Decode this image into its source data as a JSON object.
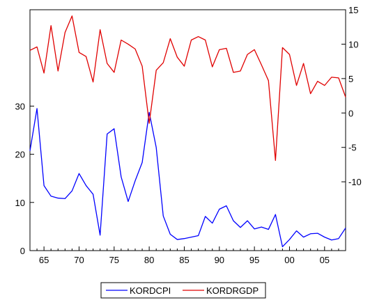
{
  "chart_data": {
    "type": "line",
    "x": [
      1963,
      1964,
      1965,
      1966,
      1967,
      1968,
      1969,
      1970,
      1971,
      1972,
      1973,
      1974,
      1975,
      1976,
      1977,
      1978,
      1979,
      1980,
      1981,
      1982,
      1983,
      1984,
      1985,
      1986,
      1987,
      1988,
      1989,
      1990,
      1991,
      1992,
      1993,
      1994,
      1995,
      1996,
      1997,
      1998,
      1999,
      2000,
      2001,
      2002,
      2003,
      2004,
      2005,
      2006,
      2007,
      2008
    ],
    "xlim": [
      1963,
      2008
    ],
    "x_ticks": [
      {
        "value": 1965,
        "label": "65"
      },
      {
        "value": 1970,
        "label": "70"
      },
      {
        "value": 1975,
        "label": "75"
      },
      {
        "value": 1980,
        "label": "80"
      },
      {
        "value": 1985,
        "label": "85"
      },
      {
        "value": 1990,
        "label": "90"
      },
      {
        "value": 1995,
        "label": "95"
      },
      {
        "value": 2000,
        "label": "00"
      },
      {
        "value": 2005,
        "label": "05"
      }
    ],
    "left_axis": {
      "ylim": [
        0,
        50
      ],
      "ticks": [
        0,
        10,
        20,
        30
      ],
      "tick_labels": [
        "0",
        "10",
        "20",
        "30"
      ]
    },
    "right_axis": {
      "ylim": [
        -20,
        15
      ],
      "ticks": [
        -10,
        -5,
        0,
        5,
        10,
        15
      ],
      "tick_labels": [
        "-10",
        "-5",
        "0",
        "5",
        "10",
        "15"
      ]
    },
    "grid": false,
    "legend_position": "bottom-center",
    "series": [
      {
        "name": "KORDCPI",
        "axis": "left",
        "color": "#0000ff",
        "values": [
          20.7,
          29.5,
          13.5,
          11.3,
          10.9,
          10.8,
          12.4,
          16,
          13.5,
          11.7,
          3.2,
          24.2,
          25.3,
          15.3,
          10.2,
          14.5,
          18.3,
          28.7,
          21.4,
          7.2,
          3.4,
          2.3,
          2.5,
          2.8,
          3.1,
          7.1,
          5.7,
          8.6,
          9.3,
          6.2,
          4.8,
          6.2,
          4.5,
          4.9,
          4.4,
          7.5,
          0.8,
          2.3,
          4.1,
          2.8,
          3.5,
          3.6,
          2.8,
          2.2,
          2.5,
          4.7
        ]
      },
      {
        "name": "KORDRGDP",
        "axis": "right",
        "color": "#e00000",
        "values": [
          9.1,
          9.6,
          5.8,
          12.7,
          6.1,
          11.7,
          14.1,
          8.8,
          8.2,
          4.5,
          12.1,
          7.2,
          5.9,
          10.6,
          10,
          9.3,
          6.8,
          -1.5,
          6.2,
          7.3,
          10.8,
          8.1,
          6.8,
          10.6,
          11.1,
          10.6,
          6.7,
          9.2,
          9.4,
          5.9,
          6.1,
          8.5,
          9.2,
          7,
          4.7,
          -6.9,
          9.5,
          8.5,
          4,
          7.2,
          2.8,
          4.6,
          4,
          5.2,
          5.1,
          2.3
        ]
      }
    ]
  }
}
